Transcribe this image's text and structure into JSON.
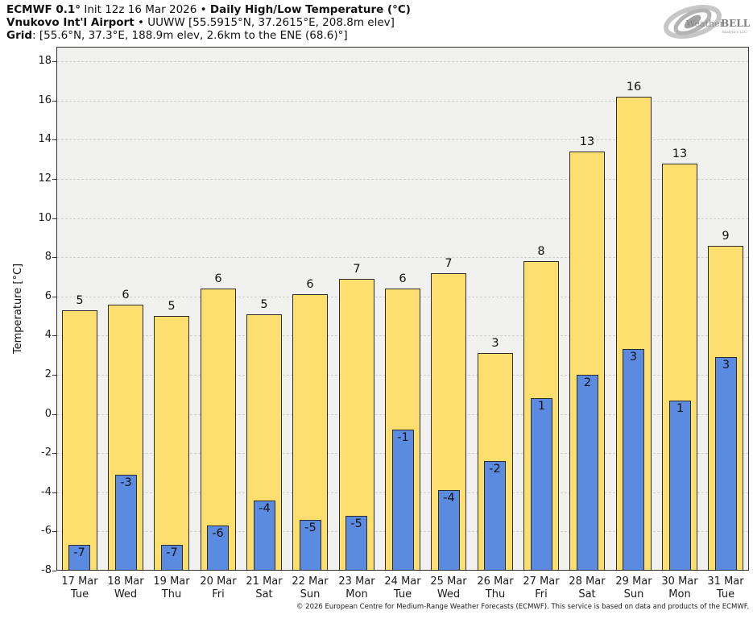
{
  "header": {
    "model_bold": "ECMWF 0.1°",
    "init_text": " Init 12z 16 Mar 2026 • ",
    "title_bold": "Daily High/Low Temperature (°C)",
    "station_bold": "Vnukovo Int'l Airport",
    "station_details": " • UUWW [55.5915°N, 37.2615°E, 208.8m elev]",
    "grid_bold": "Grid",
    "grid_details": ": [55.6°N, 37.3°E, 188.9m elev, 2.6km to the ENE (68.6)°]"
  },
  "logo": {
    "brand_weather": "Weather",
    "brand_bell": "BELL",
    "subtext": "Analytics LLC"
  },
  "chart_data": {
    "type": "bar",
    "title": "ECMWF 0.1° Init 12z 16 Mar 2026 • Daily High/Low Temperature (°C)",
    "subtitle": "Vnukovo Int'l Airport • UUWW [55.5915°N, 37.2615°E, 208.8m elev]",
    "ylabel": "Temperature [°C]",
    "xlabel": "",
    "ylim": [
      -8,
      18.75
    ],
    "yticks": [
      18,
      16,
      14,
      12,
      10,
      8,
      6,
      4,
      2,
      0,
      -2,
      -4,
      -6,
      -8
    ],
    "grid": true,
    "legend": "none",
    "plot_background": "#f1f1ef",
    "bar_border_color": "#2b2b2b",
    "categories": [
      "17 Mar",
      "18 Mar",
      "19 Mar",
      "20 Mar",
      "21 Mar",
      "22 Mar",
      "23 Mar",
      "24 Mar",
      "25 Mar",
      "26 Mar",
      "27 Mar",
      "28 Mar",
      "29 Mar",
      "30 Mar",
      "31 Mar"
    ],
    "weekdays": [
      "Tue",
      "Wed",
      "Thu",
      "Fri",
      "Sat",
      "Sun",
      "Mon",
      "Tue",
      "Wed",
      "Thu",
      "Fri",
      "Sat",
      "Sun",
      "Mon",
      "Tue"
    ],
    "series": [
      {
        "name": "Daily High",
        "color": "#fcdf6e",
        "values": [
          5.3,
          5.6,
          5.0,
          6.4,
          5.1,
          6.1,
          6.9,
          6.4,
          7.2,
          3.1,
          7.8,
          13.4,
          16.2,
          12.8,
          8.6
        ],
        "labels": [
          "5",
          "6",
          "5",
          "6",
          "5",
          "6",
          "7",
          "6",
          "7",
          "3",
          "8",
          "13",
          "16",
          "13",
          "9"
        ]
      },
      {
        "name": "Daily Low",
        "color": "#5a8be0",
        "values": [
          -6.7,
          -3.1,
          -6.7,
          -5.7,
          -4.4,
          -5.4,
          -5.2,
          -0.8,
          -3.9,
          -2.4,
          0.8,
          2.0,
          3.3,
          0.7,
          2.9
        ],
        "labels": [
          "-7",
          "-3",
          "-7",
          "-6",
          "-4",
          "-5",
          "-5",
          "-1",
          "-4",
          "-2",
          "1",
          "2",
          "3",
          "1",
          "3"
        ]
      }
    ]
  },
  "footer": {
    "copyright": "© 2026 European Centre for Medium-Range Weather Forecasts (ECMWF). This service is based on data and products of the ECMWF."
  }
}
